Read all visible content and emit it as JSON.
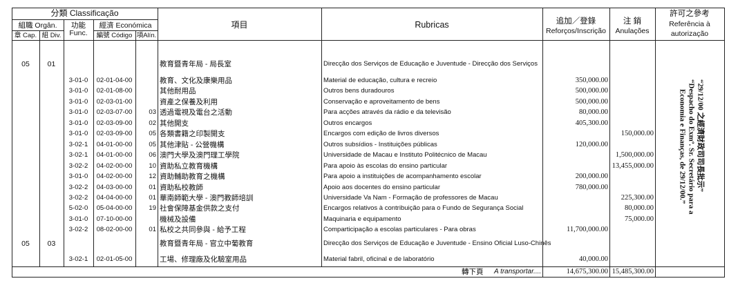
{
  "header": {
    "classificacao": "分類  Classificação",
    "organica": "組職  Orgân.",
    "funcional": "功能\nFunc.",
    "funcional_zh": "功能",
    "funcional_pt": "Func.",
    "economica": "經濟  Económica",
    "cap": "章 Cap.",
    "div": "組 Div.",
    "codigo": "編號 Código",
    "alinea": "項Alín.",
    "item_zh": "項目",
    "rubricas": "Rubricas",
    "reforcos_zh": "追加／登錄",
    "reforcos_pt": "Reforços/Inscrição",
    "anulacoes_zh": "注  銷",
    "anulacoes_pt": "Anulações",
    "ref_zh": "許可之參考",
    "ref_pt1": "Referência à",
    "ref_pt2": "autorização"
  },
  "rows": [
    {
      "cap": "05",
      "div": "01",
      "func": "",
      "code": "",
      "alin": "",
      "zh": "教育暨青年局 - 局長室",
      "pt": "Direcção dos Serviços de Educação e Juventude - Direcção dos Serviços",
      "reforco": "",
      "anulacao": ""
    },
    {
      "cap": "",
      "div": "",
      "func": "3-01-0",
      "code": "02-01-04-00",
      "alin": "",
      "zh": "教育、文化及康樂用品",
      "pt": "Material de educação, cultura e recreio",
      "reforco": "350,000.00",
      "anulacao": ""
    },
    {
      "cap": "",
      "div": "",
      "func": "3-01-0",
      "code": "02-01-08-00",
      "alin": "",
      "zh": "其他耐用品",
      "pt": "Outros bens duradouros",
      "reforco": "500,000.00",
      "anulacao": ""
    },
    {
      "cap": "",
      "div": "",
      "func": "3-01-0",
      "code": "02-03-01-00",
      "alin": "",
      "zh": "資產之保養及利用",
      "pt": "Conservação e aproveitamento de bens",
      "reforco": "500,000.00",
      "anulacao": ""
    },
    {
      "cap": "",
      "div": "",
      "func": "3-01-0",
      "code": "02-03-07-00",
      "alin": "03",
      "zh": "透過電視及電台之活動",
      "pt": "Para acções através da rádio e da televisão",
      "reforco": "80,000.00",
      "anulacao": ""
    },
    {
      "cap": "",
      "div": "",
      "func": "3-01-0",
      "code": "02-03-09-00",
      "alin": "02",
      "zh": "其他開支",
      "pt": "Outros encargos",
      "reforco": "405,300.00",
      "anulacao": ""
    },
    {
      "cap": "",
      "div": "",
      "func": "3-01-0",
      "code": "02-03-09-00",
      "alin": "05",
      "zh": "各類書籍之印製開支",
      "pt": "Encargos com edição de livros diversos",
      "reforco": "",
      "anulacao": "150,000.00"
    },
    {
      "cap": "",
      "div": "",
      "func": "3-02-1",
      "code": "04-01-00-00",
      "alin": "05",
      "zh": "其他津貼 - 公營機構",
      "pt": "Outros subsídios - Instituições públicas",
      "reforco": "120,000.00",
      "anulacao": ""
    },
    {
      "cap": "",
      "div": "",
      "func": "3-02-1",
      "code": "04-01-00-00",
      "alin": "06",
      "zh": "澳門大學及澳門理工學院",
      "pt": "Universidade de Macau e Instituto Politécnico de Macau",
      "reforco": "",
      "anulacao": "1,500,000.00"
    },
    {
      "cap": "",
      "div": "",
      "func": "3-02-2",
      "code": "04-02-00-00",
      "alin": "10",
      "zh": "資助私立教育機構",
      "pt": "Para apoio às escolas do ensino particular",
      "reforco": "",
      "anulacao": "13,455,000.00"
    },
    {
      "cap": "",
      "div": "",
      "func": "3-01-0",
      "code": "04-02-00-00",
      "alin": "12",
      "zh": "資助輔助教育之機構",
      "pt": "Para apoio a instituições de acompanhamento escolar",
      "reforco": "200,000.00",
      "anulacao": ""
    },
    {
      "cap": "",
      "div": "",
      "func": "3-02-2",
      "code": "04-03-00-00",
      "alin": "01",
      "zh": "資助私校教師",
      "pt": "Apoio aos docentes do ensino particular",
      "reforco": "780,000.00",
      "anulacao": ""
    },
    {
      "cap": "",
      "div": "",
      "func": "3-02-2",
      "code": "04-04-00-00",
      "alin": "01",
      "zh": "華南師範大學 - 澳門教師培訓",
      "pt": "Universidade Va Nam - Formação de professores de Macau",
      "reforco": "",
      "anulacao": "225,300.00"
    },
    {
      "cap": "",
      "div": "",
      "func": "5-02-0",
      "code": "05-04-00-00",
      "alin": "19",
      "zh": "社會保障基金供款之支付",
      "pt": "Encargos relativos à contribuição para o Fundo de Segurança Social",
      "reforco": "",
      "anulacao": "80,000.00"
    },
    {
      "cap": "",
      "div": "",
      "func": "3-01-0",
      "code": "07-10-00-00",
      "alin": "",
      "zh": "機械及設備",
      "pt": "Maquinaria e equipamento",
      "reforco": "",
      "anulacao": "75,000.00"
    },
    {
      "cap": "",
      "div": "",
      "func": "3-02-2",
      "code": "08-02-00-00",
      "alin": "01",
      "zh": "私校之共同參與 - 給予工程",
      "pt": "Comparticipação a escolas particulares - Para obras",
      "reforco": "11,700,000.00",
      "anulacao": ""
    },
    {
      "cap": "05",
      "div": "03",
      "func": "",
      "code": "",
      "alin": "",
      "zh": "教育暨青年局 - 官立中葡教育",
      "pt": "Direcção dos Serviços de Educação e Juventude - Ensino Oficial Luso-Chinês",
      "reforco": "",
      "anulacao": ""
    },
    {
      "cap": "",
      "div": "",
      "func": "3-02-1",
      "code": "02-01-05-00",
      "alin": "",
      "zh": "工場、修理廠及化驗室用品",
      "pt": "Material fabril, oficinal e de laboratório",
      "reforco": "40,000.00",
      "anulacao": ""
    }
  ],
  "authorization": {
    "line1": "“29/12/00 之經濟財政司司長批示”",
    "line2": "“Despacho do Exmº. Sr. Secretário para a",
    "line3": "Economia e Finanças, de 29/12/00.”"
  },
  "footer": {
    "label_zh": "轉下頁",
    "label_pt": "A transportar....",
    "total_reforcos": "14,675,300.00",
    "total_anulacoes": "15,485,300.00"
  }
}
